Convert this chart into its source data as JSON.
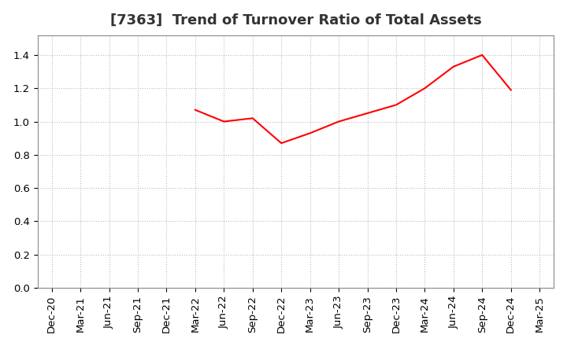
{
  "title": "[7363]  Trend of Turnover Ratio of Total Assets",
  "x_labels": [
    "Dec-20",
    "Mar-21",
    "Jun-21",
    "Sep-21",
    "Dec-21",
    "Mar-22",
    "Jun-22",
    "Sep-22",
    "Dec-22",
    "Mar-23",
    "Jun-23",
    "Sep-23",
    "Dec-23",
    "Mar-24",
    "Jun-24",
    "Sep-24",
    "Dec-24",
    "Mar-25"
  ],
  "y_values": [
    null,
    null,
    null,
    null,
    null,
    1.07,
    1.0,
    1.02,
    0.87,
    0.93,
    1.0,
    1.05,
    1.1,
    1.2,
    1.33,
    1.4,
    1.19,
    null
  ],
  "line_color": "#ff0000",
  "line_width": 1.5,
  "ylim": [
    0.0,
    1.52
  ],
  "yticks": [
    0.0,
    0.2,
    0.4,
    0.6,
    0.8,
    1.0,
    1.2,
    1.4
  ],
  "grid_color": "#bbbbbb",
  "grid_linestyle": "dotted",
  "background_color": "#ffffff",
  "title_fontsize": 13,
  "title_color": "#333333",
  "tick_fontsize": 9.5,
  "xlabel_rotation": 90
}
